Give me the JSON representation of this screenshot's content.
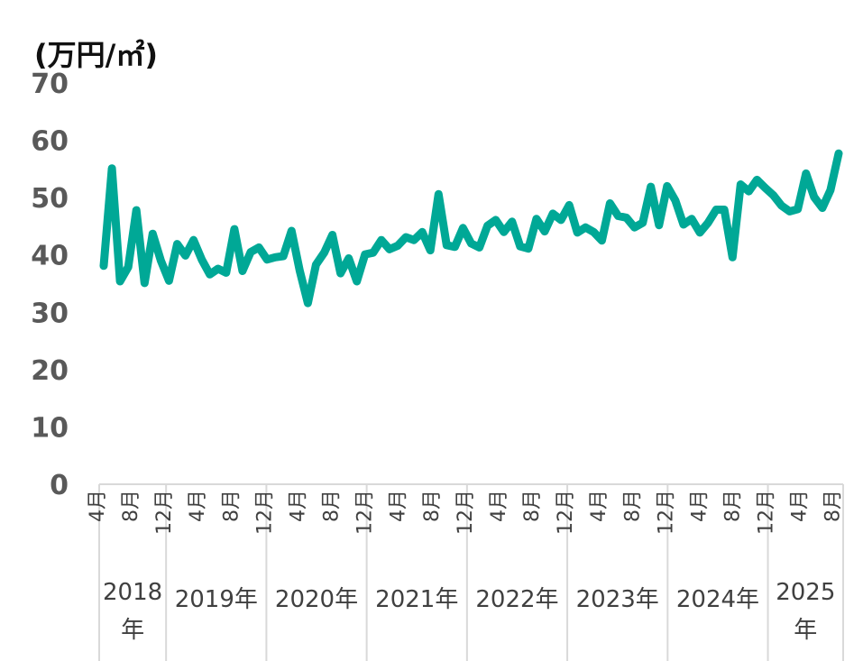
{
  "chart_data": {
    "type": "line",
    "unit_label": "(万円/㎡)",
    "ylim": [
      0,
      70
    ],
    "yticks": [
      "0",
      "10",
      "20",
      "30",
      "40",
      "50",
      "60",
      "70"
    ],
    "grid": false,
    "line_color": "#00A896",
    "axis_color": "#D9D9D9",
    "month_ticks": [
      {
        "index": 3,
        "label": "4月"
      },
      {
        "index": 7,
        "label": "8月"
      },
      {
        "index": 11,
        "label": "12月"
      },
      {
        "index": 15,
        "label": "4月"
      },
      {
        "index": 19,
        "label": "8月"
      },
      {
        "index": 23,
        "label": "12月"
      },
      {
        "index": 27,
        "label": "4月"
      },
      {
        "index": 31,
        "label": "8月"
      },
      {
        "index": 35,
        "label": "12月"
      },
      {
        "index": 39,
        "label": "4月"
      },
      {
        "index": 43,
        "label": "8月"
      },
      {
        "index": 47,
        "label": "12月"
      },
      {
        "index": 51,
        "label": "4月"
      },
      {
        "index": 55,
        "label": "8月"
      },
      {
        "index": 59,
        "label": "12月"
      },
      {
        "index": 63,
        "label": "4月"
      },
      {
        "index": 67,
        "label": "8月"
      },
      {
        "index": 71,
        "label": "12月"
      },
      {
        "index": 75,
        "label": "4月"
      },
      {
        "index": 79,
        "label": "8月"
      },
      {
        "index": 83,
        "label": "12月"
      },
      {
        "index": 87,
        "label": "4月"
      },
      {
        "index": 91,
        "label": "8月"
      }
    ],
    "year_groups": [
      {
        "start": 3,
        "end": 11,
        "lines": [
          "2018",
          "年"
        ]
      },
      {
        "start": 11,
        "end": 23,
        "lines": [
          "2019年"
        ]
      },
      {
        "start": 23,
        "end": 35,
        "lines": [
          "2020年"
        ]
      },
      {
        "start": 35,
        "end": 47,
        "lines": [
          "2021年"
        ]
      },
      {
        "start": 47,
        "end": 59,
        "lines": [
          "2022年"
        ]
      },
      {
        "start": 59,
        "end": 71,
        "lines": [
          "2023年"
        ]
      },
      {
        "start": 71,
        "end": 83,
        "lines": [
          "2024年"
        ]
      },
      {
        "start": 83,
        "end": 92,
        "lines": [
          "2025",
          "年"
        ]
      }
    ],
    "x_start_index": 3,
    "x_end_index": 92,
    "values": [
      38.1,
      55.1,
      35.4,
      37.9,
      47.8,
      35.1,
      43.7,
      39.0,
      35.5,
      41.9,
      39.9,
      42.6,
      39.2,
      36.6,
      37.6,
      36.9,
      44.5,
      37.2,
      40.5,
      41.3,
      39.2,
      39.6,
      39.8,
      44.2,
      37.3,
      31.6,
      38.3,
      40.4,
      43.5,
      36.8,
      39.4,
      35.4,
      40.1,
      40.4,
      42.6,
      41.0,
      41.6,
      43.1,
      42.6,
      44.0,
      40.8,
      50.6,
      41.7,
      41.4,
      44.7,
      42.0,
      41.3,
      45.1,
      46.1,
      44.0,
      45.8,
      41.5,
      41.1,
      46.3,
      44.1,
      47.2,
      46.1,
      48.7,
      43.9,
      44.8,
      44.0,
      42.5,
      49.0,
      46.8,
      46.5,
      44.8,
      45.6,
      51.9,
      45.2,
      52.0,
      49.5,
      45.3,
      46.3,
      43.9,
      45.6,
      47.9,
      47.9,
      39.6,
      52.3,
      51.1,
      53.1,
      51.7,
      50.4,
      48.6,
      47.6,
      48.0,
      54.2,
      50.1,
      48.2,
      51.3,
      57.7
    ]
  }
}
